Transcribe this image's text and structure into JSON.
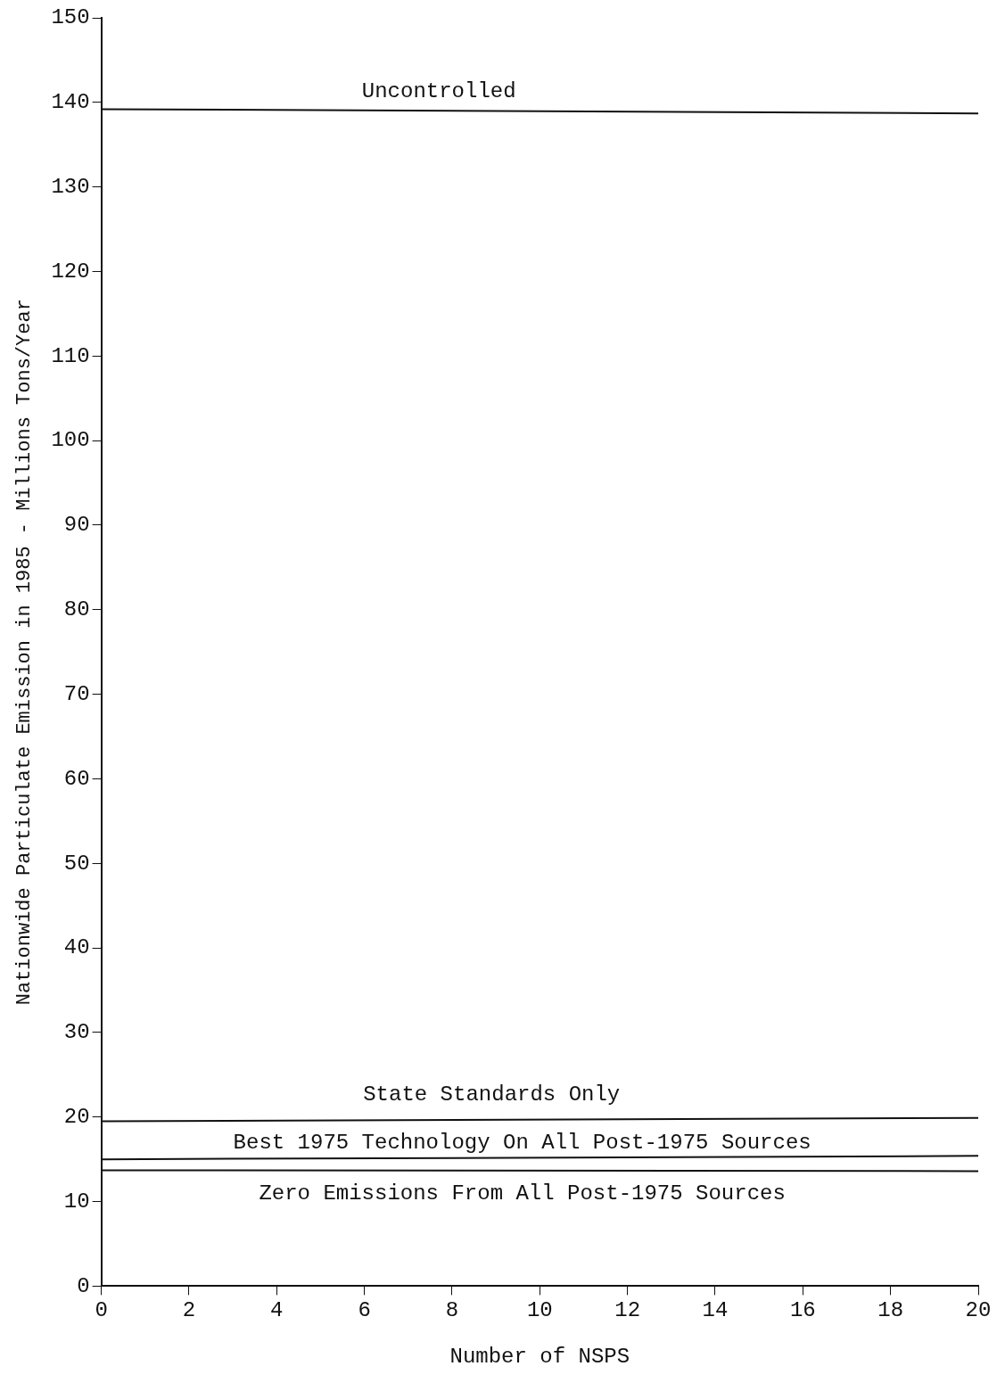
{
  "chart_data": {
    "type": "line",
    "xlabel": "Number of NSPS",
    "ylabel": "Nationwide Particulate Emission in 1985 - Millions Tons/Year",
    "x": [
      0,
      20
    ],
    "series": [
      {
        "name": "Uncontrolled",
        "color": "#111111",
        "values": [
          139.2,
          138.7
        ]
      },
      {
        "name": "State Standards Only",
        "color": "#111111",
        "values": [
          19.5,
          19.9
        ]
      },
      {
        "name": "Best 1975 Technology On All Post-1975 Sources",
        "color": "#111111",
        "values": [
          15,
          15.4
        ]
      },
      {
        "name": "Zero Emissions From All Post-1975 Sources",
        "color": "#111111",
        "values": [
          13.7,
          13.6
        ]
      }
    ],
    "xlim": [
      0,
      20
    ],
    "xticks": [
      0,
      2,
      4,
      6,
      8,
      10,
      12,
      14,
      16,
      18,
      20
    ],
    "ylim": [
      0,
      150
    ],
    "yticks": [
      0,
      10,
      20,
      30,
      40,
      50,
      60,
      70,
      80,
      90,
      100,
      110,
      120,
      130,
      140,
      150
    ],
    "grid": false,
    "legend": false,
    "marker": "none",
    "line_style": "solid"
  }
}
